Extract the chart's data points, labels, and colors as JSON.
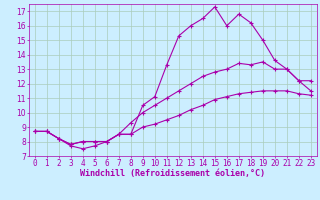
{
  "background_color": "#cceeff",
  "grid_color": "#aaccbb",
  "line_color": "#aa00aa",
  "xlabel": "Windchill (Refroidissement éolien,°C)",
  "xlim": [
    -0.5,
    23.5
  ],
  "ylim": [
    7,
    17.5
  ],
  "yticks": [
    7,
    8,
    9,
    10,
    11,
    12,
    13,
    14,
    15,
    16,
    17
  ],
  "xticks": [
    0,
    1,
    2,
    3,
    4,
    5,
    6,
    7,
    8,
    9,
    10,
    11,
    12,
    13,
    14,
    15,
    16,
    17,
    18,
    19,
    20,
    21,
    22,
    23
  ],
  "line1_x": [
    0,
    1,
    2,
    3,
    4,
    5,
    6,
    7,
    8,
    9,
    10,
    11,
    12,
    13,
    14,
    15,
    16,
    17,
    18,
    19,
    20,
    21,
    22,
    23
  ],
  "line1_y": [
    8.7,
    8.7,
    8.2,
    7.8,
    8.0,
    8.0,
    8.0,
    8.5,
    8.5,
    10.5,
    11.1,
    13.3,
    15.3,
    16.0,
    16.5,
    17.3,
    16.0,
    16.8,
    16.2,
    15.0,
    13.6,
    13.0,
    12.2,
    12.2
  ],
  "line2_x": [
    0,
    1,
    2,
    3,
    4,
    5,
    6,
    7,
    8,
    9,
    10,
    11,
    12,
    13,
    14,
    15,
    16,
    17,
    18,
    19,
    20,
    21,
    22,
    23
  ],
  "line2_y": [
    8.7,
    8.7,
    8.2,
    7.8,
    8.0,
    8.0,
    8.0,
    8.5,
    9.3,
    10.0,
    10.5,
    11.0,
    11.5,
    12.0,
    12.5,
    12.8,
    13.0,
    13.4,
    13.3,
    13.5,
    13.0,
    13.0,
    12.2,
    11.5
  ],
  "line3_x": [
    0,
    1,
    2,
    3,
    4,
    5,
    6,
    7,
    8,
    9,
    10,
    11,
    12,
    13,
    14,
    15,
    16,
    17,
    18,
    19,
    20,
    21,
    22,
    23
  ],
  "line3_y": [
    8.7,
    8.7,
    8.2,
    7.7,
    7.5,
    7.7,
    8.0,
    8.5,
    8.5,
    9.0,
    9.2,
    9.5,
    9.8,
    10.2,
    10.5,
    10.9,
    11.1,
    11.3,
    11.4,
    11.5,
    11.5,
    11.5,
    11.3,
    11.2
  ],
  "marker": "+",
  "markersize": 3,
  "linewidth": 0.8,
  "xlabel_fontsize": 6,
  "tick_fontsize": 5.5
}
